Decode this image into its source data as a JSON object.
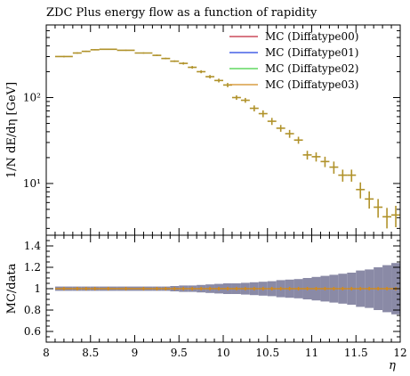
{
  "chart_data": [
    {
      "type": "scatter",
      "title": "ZDC Plus energy flow as a function of rapidity",
      "ylabel": "1/N dE/dη [GeV]",
      "xlabel": "",
      "yscale": "log",
      "xlim": [
        8,
        12
      ],
      "ylim": [
        2.5,
        700
      ],
      "yticks": [
        {
          "value": 10,
          "label": "10¹"
        },
        {
          "value": 100,
          "label": "10²"
        }
      ],
      "grid": false,
      "legend_position": "top-right",
      "legend": [
        {
          "label": "MC (Diffatype00)",
          "color": "#c0283a"
        },
        {
          "label": "MC (Diffatype01)",
          "color": "#2040e0"
        },
        {
          "label": "MC (Diffatype02)",
          "color": "#40d040"
        },
        {
          "label": "MC (Diffatype03)",
          "color": "#d08a1e"
        }
      ],
      "series": [
        {
          "name": "MC (Diffatype03)",
          "color": "#b0922a",
          "points": [
            {
              "x0": 8.1,
              "x1": 8.3,
              "y": 300,
              "err": 6
            },
            {
              "x0": 8.3,
              "x1": 8.4,
              "y": 330,
              "err": 6
            },
            {
              "x0": 8.4,
              "x1": 8.5,
              "y": 345,
              "err": 6
            },
            {
              "x0": 8.5,
              "x1": 8.6,
              "y": 360,
              "err": 6
            },
            {
              "x0": 8.6,
              "x1": 8.8,
              "y": 365,
              "err": 6
            },
            {
              "x0": 8.8,
              "x1": 9.0,
              "y": 355,
              "err": 6
            },
            {
              "x0": 9.0,
              "x1": 9.2,
              "y": 330,
              "err": 6
            },
            {
              "x0": 9.2,
              "x1": 9.3,
              "y": 310,
              "err": 6
            },
            {
              "x0": 9.3,
              "x1": 9.4,
              "y": 285,
              "err": 6
            },
            {
              "x0": 9.4,
              "x1": 9.5,
              "y": 265,
              "err": 6
            },
            {
              "x0": 9.5,
              "x1": 9.6,
              "y": 250,
              "err": 8
            },
            {
              "x0": 9.6,
              "x1": 9.7,
              "y": 225,
              "err": 8
            },
            {
              "x0": 9.7,
              "x1": 9.8,
              "y": 200,
              "err": 8
            },
            {
              "x0": 9.8,
              "x1": 9.9,
              "y": 175,
              "err": 8
            },
            {
              "x0": 9.9,
              "x1": 10.0,
              "y": 158,
              "err": 8
            },
            {
              "x0": 10.0,
              "x1": 10.1,
              "y": 140,
              "err": 8
            },
            {
              "x0": 10.1,
              "x1": 10.2,
              "y": 100,
              "err": 6
            },
            {
              "x0": 10.2,
              "x1": 10.3,
              "y": 93,
              "err": 6
            },
            {
              "x0": 10.3,
              "x1": 10.4,
              "y": 75,
              "err": 6
            },
            {
              "x0": 10.4,
              "x1": 10.5,
              "y": 65,
              "err": 6
            },
            {
              "x0": 10.5,
              "x1": 10.6,
              "y": 53,
              "err": 5
            },
            {
              "x0": 10.6,
              "x1": 10.7,
              "y": 44,
              "err": 4
            },
            {
              "x0": 10.7,
              "x1": 10.8,
              "y": 38,
              "err": 4
            },
            {
              "x0": 10.8,
              "x1": 10.9,
              "y": 32,
              "err": 3
            },
            {
              "x0": 10.9,
              "x1": 11.0,
              "y": 21.5,
              "err": 2.5
            },
            {
              "x0": 11.0,
              "x1": 11.1,
              "y": 20.5,
              "err": 2.5
            },
            {
              "x0": 11.1,
              "x1": 11.2,
              "y": 18,
              "err": 2.5
            },
            {
              "x0": 11.2,
              "x1": 11.3,
              "y": 15.5,
              "err": 2.5
            },
            {
              "x0": 11.3,
              "x1": 11.4,
              "y": 12.5,
              "err": 2
            },
            {
              "x0": 11.4,
              "x1": 11.5,
              "y": 12.5,
              "err": 2
            },
            {
              "x0": 11.5,
              "x1": 11.6,
              "y": 8.5,
              "err": 1.8
            },
            {
              "x0": 11.6,
              "x1": 11.7,
              "y": 6.6,
              "err": 1.5
            },
            {
              "x0": 11.7,
              "x1": 11.8,
              "y": 5.3,
              "err": 1.3
            },
            {
              "x0": 11.8,
              "x1": 11.9,
              "y": 4.1,
              "err": 1.1
            },
            {
              "x0": 11.9,
              "x1": 12.0,
              "y": 4.3,
              "err": 1.2
            }
          ]
        }
      ]
    },
    {
      "type": "scatter",
      "ylabel": "MC/data",
      "xlabel": "η",
      "xlim": [
        8,
        12
      ],
      "ylim": [
        0.5,
        1.5
      ],
      "xticks": [
        8,
        8.5,
        9,
        9.5,
        10,
        10.5,
        11,
        11.5,
        12
      ],
      "yticks": [
        0.6,
        0.8,
        1,
        1.2,
        1.4
      ],
      "band_color": "#8a8aa6",
      "marker_color": "#d08a1e",
      "ratio_points": [
        {
          "x0": 8.1,
          "x1": 8.3,
          "y": 1,
          "err": 0.02
        },
        {
          "x0": 8.3,
          "x1": 8.4,
          "y": 1,
          "err": 0.02
        },
        {
          "x0": 8.4,
          "x1": 8.5,
          "y": 1,
          "err": 0.02
        },
        {
          "x0": 8.5,
          "x1": 8.6,
          "y": 1,
          "err": 0.02
        },
        {
          "x0": 8.6,
          "x1": 8.8,
          "y": 1,
          "err": 0.02
        },
        {
          "x0": 8.8,
          "x1": 9.0,
          "y": 1,
          "err": 0.02
        },
        {
          "x0": 9.0,
          "x1": 9.2,
          "y": 1,
          "err": 0.02
        },
        {
          "x0": 9.2,
          "x1": 9.3,
          "y": 1,
          "err": 0.02
        },
        {
          "x0": 9.3,
          "x1": 9.4,
          "y": 1,
          "err": 0.02
        },
        {
          "x0": 9.4,
          "x1": 9.5,
          "y": 1,
          "err": 0.025
        },
        {
          "x0": 9.5,
          "x1": 9.6,
          "y": 1,
          "err": 0.03
        },
        {
          "x0": 9.6,
          "x1": 9.7,
          "y": 1,
          "err": 0.03
        },
        {
          "x0": 9.7,
          "x1": 9.8,
          "y": 1,
          "err": 0.035
        },
        {
          "x0": 9.8,
          "x1": 9.9,
          "y": 1,
          "err": 0.04
        },
        {
          "x0": 9.9,
          "x1": 10.0,
          "y": 1,
          "err": 0.045
        },
        {
          "x0": 10.0,
          "x1": 10.1,
          "y": 1,
          "err": 0.05
        },
        {
          "x0": 10.1,
          "x1": 10.2,
          "y": 1,
          "err": 0.05
        },
        {
          "x0": 10.2,
          "x1": 10.3,
          "y": 1,
          "err": 0.055
        },
        {
          "x0": 10.3,
          "x1": 10.4,
          "y": 1,
          "err": 0.06
        },
        {
          "x0": 10.4,
          "x1": 10.5,
          "y": 1,
          "err": 0.065
        },
        {
          "x0": 10.5,
          "x1": 10.6,
          "y": 1,
          "err": 0.07
        },
        {
          "x0": 10.6,
          "x1": 10.7,
          "y": 1,
          "err": 0.08
        },
        {
          "x0": 10.7,
          "x1": 10.8,
          "y": 1,
          "err": 0.085
        },
        {
          "x0": 10.8,
          "x1": 10.9,
          "y": 1,
          "err": 0.09
        },
        {
          "x0": 10.9,
          "x1": 11.0,
          "y": 1,
          "err": 0.1
        },
        {
          "x0": 11.0,
          "x1": 11.1,
          "y": 1,
          "err": 0.11
        },
        {
          "x0": 11.1,
          "x1": 11.2,
          "y": 1,
          "err": 0.12
        },
        {
          "x0": 11.2,
          "x1": 11.3,
          "y": 1,
          "err": 0.13
        },
        {
          "x0": 11.3,
          "x1": 11.4,
          "y": 1,
          "err": 0.14
        },
        {
          "x0": 11.4,
          "x1": 11.5,
          "y": 1,
          "err": 0.15
        },
        {
          "x0": 11.5,
          "x1": 11.6,
          "y": 1,
          "err": 0.17
        },
        {
          "x0": 11.6,
          "x1": 11.7,
          "y": 1,
          "err": 0.18
        },
        {
          "x0": 11.7,
          "x1": 11.8,
          "y": 1,
          "err": 0.2
        },
        {
          "x0": 11.8,
          "x1": 11.9,
          "y": 1,
          "err": 0.22
        },
        {
          "x0": 11.9,
          "x1": 12.0,
          "y": 1,
          "err": 0.24
        }
      ]
    }
  ]
}
